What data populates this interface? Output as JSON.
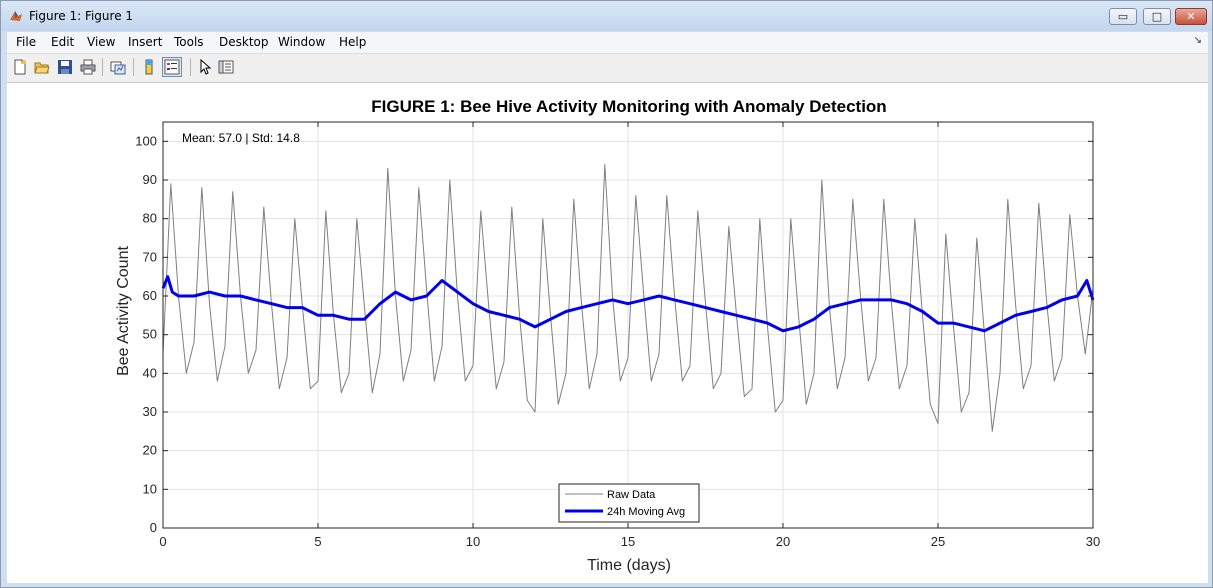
{
  "window": {
    "title": "Figure 1: Figure 1",
    "min_glyph": "▭",
    "max_glyph": "□",
    "close_glyph": "✕"
  },
  "menu": [
    "File",
    "Edit",
    "View",
    "Insert",
    "Tools",
    "Desktop",
    "Window",
    "Help"
  ],
  "menu_dock_glyph": "↘",
  "toolbar": [
    "new-figure-icon",
    "open-file-icon",
    "save-icon",
    "print-icon",
    "link-plot-icon",
    "colorbar-icon",
    "legend-icon",
    "pointer-icon",
    "property-editor-icon"
  ],
  "chart_data": {
    "type": "line",
    "title": "FIGURE 1: Bee Hive Activity Monitoring with Anomaly Detection",
    "xlabel": "Time (days)",
    "ylabel": "Bee Activity Count",
    "xlim": [
      0,
      30
    ],
    "ylim": [
      0,
      105
    ],
    "xticks": [
      0,
      5,
      10,
      15,
      20,
      25,
      30
    ],
    "yticks": [
      0,
      10,
      20,
      30,
      40,
      50,
      60,
      70,
      80,
      90,
      100
    ],
    "grid": true,
    "legend": {
      "placement": "bottom-center",
      "entries": [
        "Raw Data",
        "24h Moving Avg"
      ]
    },
    "annotation": "Mean: 57.0 | Std: 14.8",
    "series": [
      {
        "name": "Raw Data",
        "color": "#7f7f7f",
        "x": [
          0,
          0.25,
          0.5,
          0.75,
          1,
          1.25,
          1.5,
          1.75,
          2,
          2.25,
          2.5,
          2.75,
          3,
          3.25,
          3.5,
          3.75,
          4,
          4.25,
          4.5,
          4.75,
          5,
          5.25,
          5.5,
          5.75,
          6,
          6.25,
          6.5,
          6.75,
          7,
          7.25,
          7.5,
          7.75,
          8,
          8.25,
          8.5,
          8.75,
          9,
          9.25,
          9.5,
          9.75,
          10,
          10.25,
          10.5,
          10.75,
          11,
          11.25,
          11.5,
          11.75,
          12,
          12.25,
          12.5,
          12.75,
          13,
          13.25,
          13.5,
          13.75,
          14,
          14.25,
          14.5,
          14.75,
          15,
          15.25,
          15.5,
          15.75,
          16,
          16.25,
          16.5,
          16.75,
          17,
          17.25,
          17.5,
          17.75,
          18,
          18.25,
          18.5,
          18.75,
          19,
          19.25,
          19.5,
          19.75,
          20,
          20.25,
          20.5,
          20.75,
          21,
          21.25,
          21.5,
          21.75,
          22,
          22.25,
          22.5,
          22.75,
          23,
          23.25,
          23.5,
          23.75,
          24,
          24.25,
          24.5,
          24.75,
          25,
          25.25,
          25.5,
          25.75,
          26,
          26.25,
          26.5,
          26.75,
          27,
          27.25,
          27.5,
          27.75,
          28,
          28.25,
          28.5,
          28.75,
          29,
          29.25,
          29.5,
          29.75,
          30
        ],
        "y": [
          45,
          89,
          60,
          40,
          48,
          88,
          58,
          38,
          47,
          87,
          60,
          40,
          46,
          83,
          58,
          36,
          44,
          80,
          57,
          36,
          38,
          82,
          55,
          35,
          40,
          80,
          57,
          35,
          45,
          93,
          60,
          38,
          46,
          88,
          62,
          38,
          47,
          90,
          60,
          38,
          42,
          82,
          58,
          36,
          43,
          83,
          55,
          33,
          30,
          80,
          55,
          32,
          40,
          85,
          58,
          36,
          45,
          94,
          60,
          38,
          44,
          86,
          61,
          38,
          45,
          86,
          60,
          38,
          42,
          82,
          58,
          36,
          40,
          78,
          55,
          34,
          36,
          80,
          52,
          30,
          33,
          80,
          55,
          32,
          40,
          90,
          57,
          36,
          44,
          85,
          60,
          38,
          44,
          85,
          58,
          36,
          42,
          80,
          55,
          32,
          27,
          76,
          52,
          30,
          35,
          75,
          50,
          25,
          40,
          85,
          58,
          36,
          42,
          84,
          59,
          38,
          44,
          81,
          60,
          45,
          62
        ]
      },
      {
        "name": "24h Moving Avg",
        "color": "#0000ee",
        "x": [
          0,
          0.15,
          0.3,
          0.5,
          1,
          1.5,
          2,
          2.5,
          3,
          3.5,
          4,
          4.5,
          5,
          5.5,
          6,
          6.5,
          7,
          7.5,
          8,
          8.5,
          9,
          9.5,
          10,
          10.5,
          11,
          11.5,
          12,
          12.5,
          13,
          13.5,
          14,
          14.5,
          15,
          15.5,
          16,
          16.5,
          17,
          17.5,
          18,
          18.5,
          19,
          19.5,
          20,
          20.5,
          21,
          21.5,
          22,
          22.5,
          23,
          23.5,
          24,
          24.5,
          25,
          25.5,
          26,
          26.5,
          27,
          27.5,
          28,
          28.5,
          29,
          29.5,
          29.8,
          30
        ],
        "y": [
          62,
          65,
          61,
          60,
          60,
          61,
          60,
          60,
          59,
          58,
          57,
          57,
          55,
          55,
          54,
          54,
          58,
          61,
          59,
          60,
          64,
          61,
          58,
          56,
          55,
          54,
          52,
          54,
          56,
          57,
          58,
          59,
          58,
          59,
          60,
          59,
          58,
          57,
          56,
          55,
          54,
          53,
          51,
          52,
          54,
          57,
          58,
          59,
          59,
          59,
          58,
          56,
          53,
          53,
          52,
          51,
          53,
          55,
          56,
          57,
          59,
          60,
          64,
          59
        ]
      }
    ]
  }
}
